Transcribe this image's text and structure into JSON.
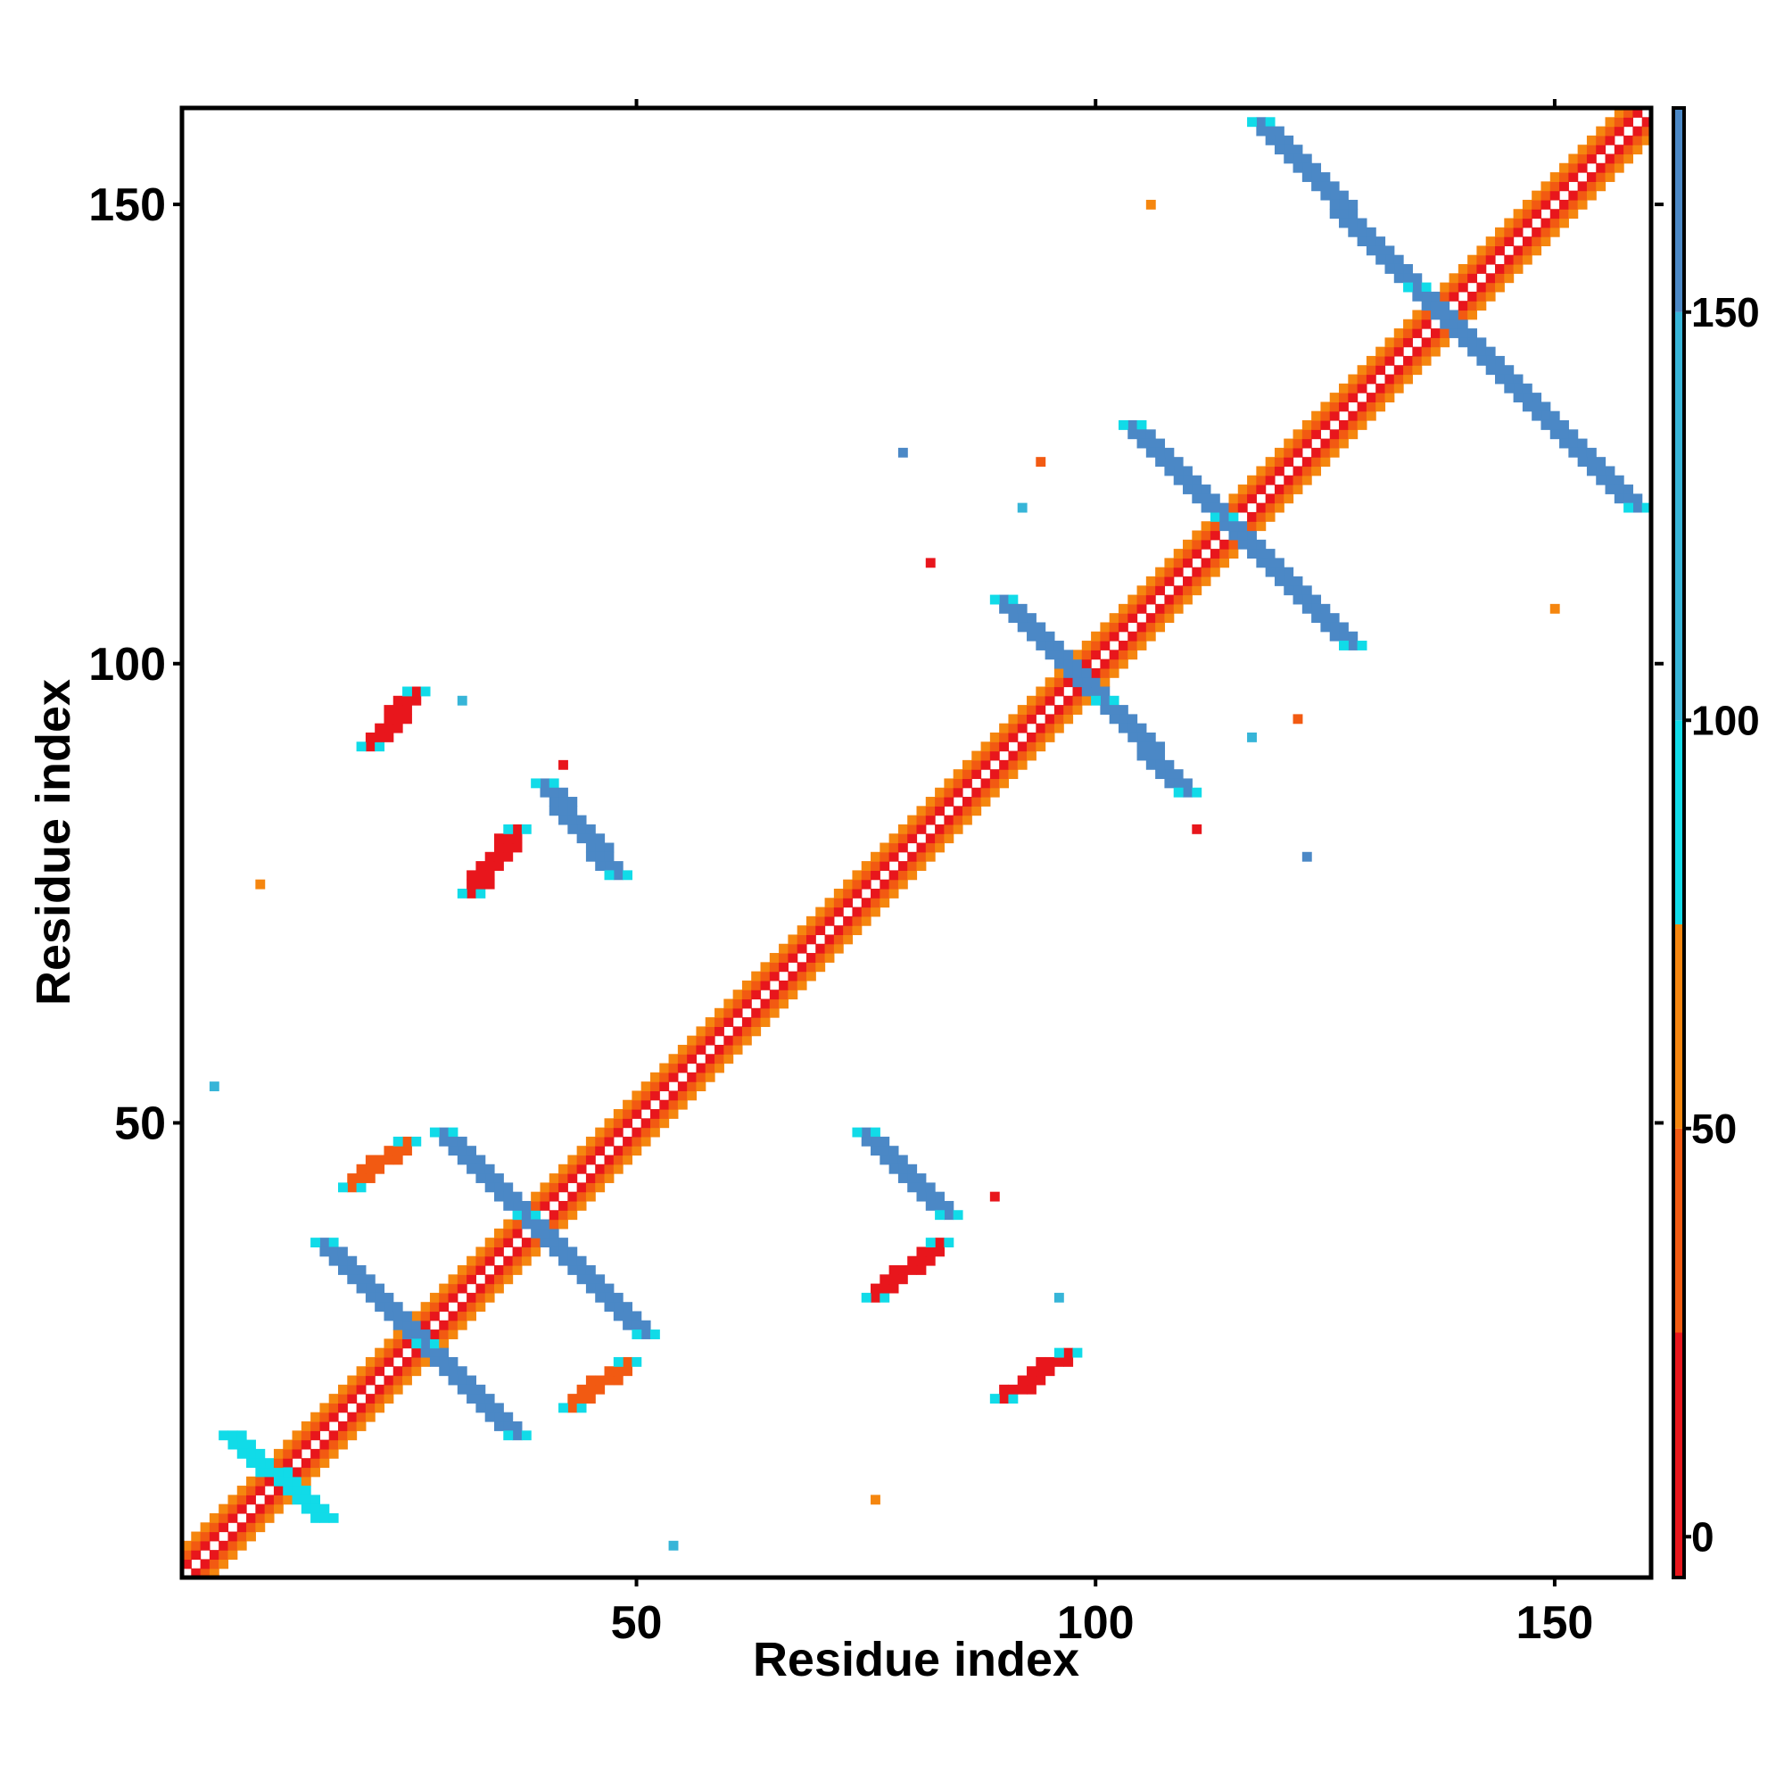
{
  "chart_data": {
    "type": "heatmap",
    "title": "",
    "xlabel": "Residue index",
    "ylabel": "Residue index",
    "xlim": [
      1,
      160
    ],
    "ylim": [
      1,
      160
    ],
    "x_ticks": [
      50,
      100,
      150
    ],
    "y_ticks": [
      50,
      100,
      150
    ],
    "colorbar": {
      "range": [
        -5,
        175
      ],
      "ticks": [
        0,
        50,
        100,
        150
      ],
      "bins": [
        {
          "from": -5,
          "to": 25,
          "color": "#e8161c"
        },
        {
          "from": 25,
          "to": 50,
          "color": "#f25a12"
        },
        {
          "from": 50,
          "to": 75,
          "color": "#f5860f"
        },
        {
          "from": 75,
          "to": 100,
          "color": "#11dbe8"
        },
        {
          "from": 100,
          "to": 150,
          "color": "#37b5d8"
        },
        {
          "from": 150,
          "to": 175,
          "color": "#4b88c6"
        },
        {
          "from": 175,
          "to": 180,
          "color": "#ffffff"
        }
      ]
    },
    "grid": false,
    "legend": "colorbar-right",
    "symmetric": true,
    "features": [
      {
        "kind": "diagonal",
        "from": 1,
        "to": 160,
        "values": [
          10,
          40,
          65
        ]
      },
      {
        "kind": "line",
        "start": [
          26,
          27
        ],
        "end": [
          37,
          16
        ],
        "value": 165
      },
      {
        "kind": "line",
        "start": [
          16,
          37
        ],
        "end": [
          27,
          26
        ],
        "value": 165
      },
      {
        "kind": "line",
        "start": [
          29,
          49
        ],
        "end": [
          38,
          40
        ],
        "value": 165
      },
      {
        "kind": "line",
        "start": [
          38,
          40
        ],
        "end": [
          51,
          27
        ],
        "value": 165
      },
      {
        "kind": "line",
        "start": [
          6,
          16
        ],
        "end": [
          16,
          7
        ],
        "value": 95
      },
      {
        "kind": "line",
        "start": [
          40,
          87
        ],
        "end": [
          48,
          77
        ],
        "value": 165
      },
      {
        "kind": "line",
        "start": [
          75,
          49
        ],
        "end": [
          84,
          40
        ],
        "value": 165
      },
      {
        "kind": "line",
        "start": [
          90,
          107
        ],
        "end": [
          101,
          96
        ],
        "value": 165
      },
      {
        "kind": "line",
        "start": [
          101,
          96
        ],
        "end": [
          110,
          86
        ],
        "value": 165
      },
      {
        "kind": "line",
        "start": [
          104,
          126
        ],
        "end": [
          114,
          116
        ],
        "value": 165
      },
      {
        "kind": "line",
        "start": [
          114,
          116
        ],
        "end": [
          128,
          102
        ],
        "value": 165
      },
      {
        "kind": "line",
        "start": [
          118,
          159
        ],
        "end": [
          135,
          141
        ],
        "value": 165
      },
      {
        "kind": "line",
        "start": [
          135,
          141
        ],
        "end": [
          159,
          117
        ],
        "value": 165
      },
      {
        "kind": "line",
        "start": [
          21,
          91
        ],
        "end": [
          26,
          97
        ],
        "value": 10
      },
      {
        "kind": "line",
        "start": [
          90,
          20
        ],
        "end": [
          97,
          25
        ],
        "value": 10
      },
      {
        "kind": "line",
        "start": [
          32,
          75
        ],
        "end": [
          37,
          82
        ],
        "value": 20
      },
      {
        "kind": "line",
        "start": [
          76,
          31
        ],
        "end": [
          83,
          37
        ],
        "value": 20
      },
      {
        "kind": "line",
        "start": [
          19,
          43
        ],
        "end": [
          25,
          48
        ],
        "value": 30
      },
      {
        "kind": "line",
        "start": [
          43,
          19
        ],
        "end": [
          49,
          24
        ],
        "value": 30
      },
      {
        "kind": "point",
        "x": 4,
        "y": 54,
        "value": 120
      },
      {
        "kind": "point",
        "x": 54,
        "y": 4,
        "value": 120
      },
      {
        "kind": "point",
        "x": 9,
        "y": 76,
        "value": 60
      },
      {
        "kind": "point",
        "x": 76,
        "y": 9,
        "value": 60
      },
      {
        "kind": "point",
        "x": 31,
        "y": 96,
        "value": 140
      },
      {
        "kind": "point",
        "x": 96,
        "y": 31,
        "value": 140
      },
      {
        "kind": "point",
        "x": 79,
        "y": 123,
        "value": 160
      },
      {
        "kind": "point",
        "x": 123,
        "y": 79,
        "value": 160
      },
      {
        "kind": "point",
        "x": 82,
        "y": 111,
        "value": 10
      },
      {
        "kind": "point",
        "x": 111,
        "y": 82,
        "value": 10
      },
      {
        "kind": "point",
        "x": 106,
        "y": 150,
        "value": 60
      },
      {
        "kind": "point",
        "x": 150,
        "y": 106,
        "value": 60
      },
      {
        "kind": "point",
        "x": 94,
        "y": 122,
        "value": 40
      },
      {
        "kind": "point",
        "x": 122,
        "y": 94,
        "value": 40
      },
      {
        "kind": "point",
        "x": 117,
        "y": 92,
        "value": 140
      },
      {
        "kind": "point",
        "x": 92,
        "y": 117,
        "value": 140
      },
      {
        "kind": "point",
        "x": 42,
        "y": 89,
        "value": 10
      },
      {
        "kind": "point",
        "x": 89,
        "y": 42,
        "value": 10
      }
    ]
  }
}
